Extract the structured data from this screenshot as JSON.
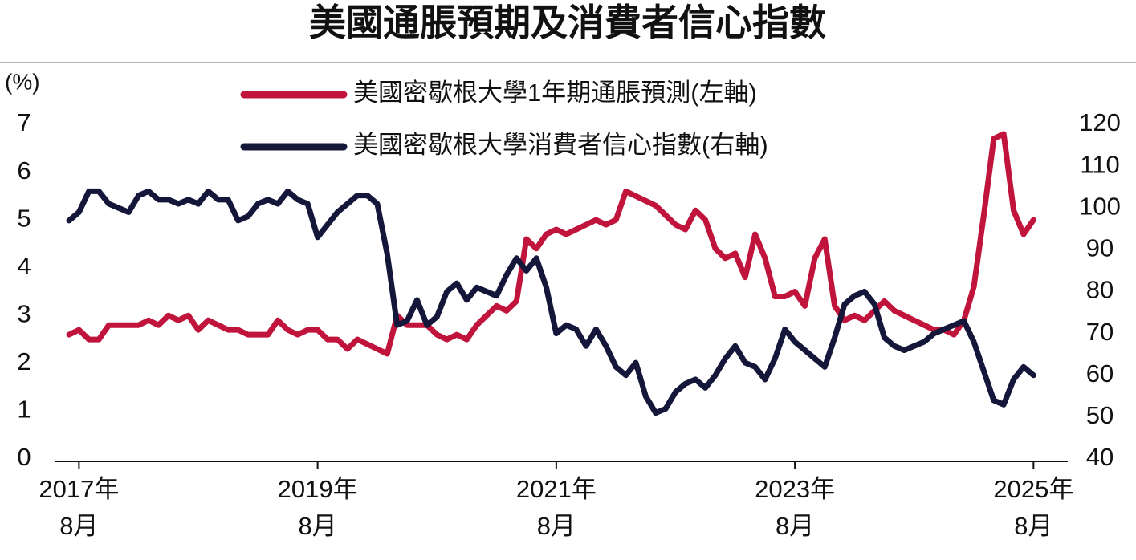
{
  "chart_data": {
    "type": "line",
    "title": "美國通脹預期及消費者信心指數",
    "y_label": "(%)",
    "categories": [
      null,
      "2017年\n8月",
      null,
      null,
      null,
      null,
      null,
      null,
      null,
      null,
      null,
      null,
      null,
      null,
      null,
      null,
      null,
      null,
      null,
      null,
      null,
      null,
      null,
      null,
      null,
      "2019年\n8月",
      null,
      null,
      null,
      null,
      null,
      null,
      null,
      null,
      null,
      null,
      null,
      null,
      null,
      null,
      null,
      null,
      null,
      null,
      null,
      null,
      null,
      null,
      null,
      "2021年\n8月",
      null,
      null,
      null,
      null,
      null,
      null,
      null,
      null,
      null,
      null,
      null,
      null,
      null,
      null,
      null,
      null,
      null,
      null,
      null,
      null,
      null,
      null,
      null,
      "2023年\n8月",
      null,
      null,
      null,
      null,
      null,
      null,
      null,
      null,
      null,
      null,
      null,
      null,
      null,
      null,
      null,
      null,
      null,
      null,
      null,
      null,
      null,
      null,
      null,
      "2025年\n8月"
    ],
    "series": [
      {
        "name": "美國密歇根大學1年期通脹預測(左軸)",
        "color": "#c0143c",
        "axis": "y",
        "values": [
          2.6,
          2.7,
          2.5,
          2.5,
          2.8,
          2.8,
          2.8,
          2.8,
          2.9,
          2.8,
          3.0,
          2.9,
          3.0,
          2.7,
          2.9,
          2.8,
          2.7,
          2.7,
          2.6,
          2.6,
          2.6,
          2.9,
          2.7,
          2.6,
          2.7,
          2.7,
          2.5,
          2.5,
          2.3,
          2.5,
          2.4,
          2.3,
          2.2,
          3.0,
          2.8,
          2.8,
          2.8,
          2.6,
          2.5,
          2.6,
          2.5,
          2.8,
          3.0,
          3.2,
          3.1,
          3.3,
          4.6,
          4.4,
          4.7,
          4.8,
          4.7,
          4.8,
          4.9,
          5.0,
          4.9,
          5.0,
          5.6,
          5.5,
          5.4,
          5.3,
          5.1,
          4.9,
          4.8,
          5.2,
          5.0,
          4.4,
          4.2,
          4.3,
          3.8,
          4.7,
          4.2,
          3.4,
          3.4,
          3.5,
          3.2,
          4.2,
          4.6,
          3.2,
          2.9,
          3.0,
          2.9,
          3.1,
          3.3,
          3.1,
          3.0,
          2.9,
          2.8,
          2.7,
          2.7,
          2.6,
          2.9,
          3.6,
          5.1,
          6.7,
          6.8,
          5.2,
          4.7,
          5.0
        ]
      },
      {
        "name": "美國密歇根大學消費者信心指數(右軸)",
        "color": "#15173a",
        "axis": "y2",
        "values": [
          97,
          99,
          104,
          104,
          101,
          100,
          99,
          103,
          104,
          102,
          102,
          101,
          102,
          101,
          104,
          102,
          102,
          97,
          98,
          101,
          102,
          101,
          104,
          102,
          101,
          93,
          96,
          99,
          101,
          103,
          103,
          101,
          89,
          72,
          73,
          78,
          72,
          74,
          80,
          82,
          78,
          81,
          80,
          79,
          84,
          88,
          85,
          88,
          81,
          70,
          72,
          71,
          67,
          71,
          67,
          62,
          60,
          63,
          55,
          51,
          52,
          56,
          58,
          59,
          57,
          60,
          64,
          67,
          63,
          62,
          59,
          64,
          71,
          68,
          66,
          64,
          62,
          69,
          77,
          79,
          80,
          77,
          69,
          67,
          66,
          67,
          68,
          70,
          71,
          72,
          73,
          68,
          61,
          54,
          53,
          59,
          62,
          60
        ]
      }
    ],
    "ylim": [
      0,
      7
    ],
    "yticks": [
      0,
      1,
      2,
      3,
      4,
      5,
      6,
      7
    ],
    "y2lim": [
      40,
      120
    ],
    "y2ticks": [
      40,
      50,
      60,
      70,
      80,
      90,
      100,
      110,
      120
    ]
  }
}
